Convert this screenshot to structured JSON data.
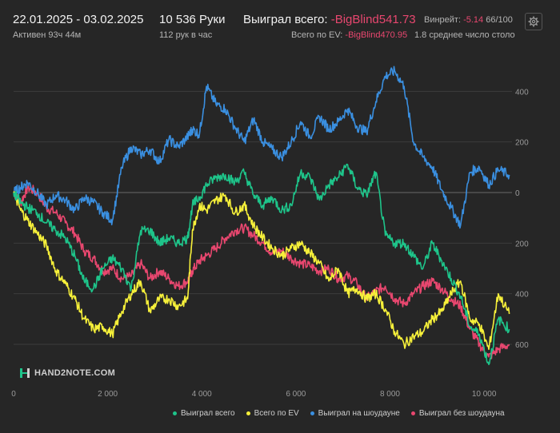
{
  "header": {
    "date_range": "22.01.2025 - 03.02.2025",
    "active": "Активен 93ч 44м",
    "hands": "10 536 Руки",
    "hands_per_hour": "112 рук в час",
    "won_label": "Выиграл всего:",
    "won_value": "-BigBlind541.73",
    "ev_label": "Всего по EV:",
    "ev_value": "-BigBlind470.95",
    "winrate_label": "Винрейт:",
    "winrate_value": "-5.14",
    "winrate_suffix": "66/100",
    "avg_table": "1.8 среднее число столо"
  },
  "logo_text": "HAND2NOTE.COM",
  "colors": {
    "background": "#262626",
    "green": "#1ec48a",
    "yellow": "#f6f03a",
    "blue": "#3a8fe0",
    "pink": "#e8476f",
    "grid": "#3c3c3c",
    "zero": "#6a6a6a"
  },
  "icons": {
    "settings": "gear-icon"
  },
  "chart_data": {
    "type": "line",
    "x_range": [
      0,
      10536
    ],
    "y_range": [
      -700,
      520
    ],
    "x_ticks": [
      0,
      2000,
      4000,
      6000,
      8000,
      10000
    ],
    "x_tick_labels": [
      "0",
      "2 000",
      "4 000",
      "6 000",
      "8 000",
      "10 000"
    ],
    "y_ticks": [
      400,
      200,
      0,
      -200,
      -400,
      -600
    ],
    "y_tick_labels": [
      "400",
      "200",
      "0",
      "200",
      "400",
      "600"
    ],
    "legend": [
      "Выиграл всего",
      "Всего по EV",
      "Выиграл на шоудауне",
      "Выиграл без шоудауна"
    ],
    "series": [
      {
        "name": "Выиграл всего",
        "color_key": "green",
        "x": [
          0,
          150,
          300,
          500,
          700,
          900,
          1100,
          1300,
          1500,
          1700,
          1900,
          2100,
          2300,
          2500,
          2700,
          2900,
          3100,
          3300,
          3500,
          3700,
          3800,
          3950,
          4100,
          4300,
          4500,
          4700,
          4900,
          5100,
          5300,
          5500,
          5700,
          5900,
          6100,
          6300,
          6500,
          6700,
          6900,
          7100,
          7300,
          7500,
          7700,
          7900,
          8100,
          8300,
          8500,
          8700,
          8900,
          9100,
          9300,
          9500,
          9700,
          9900,
          10100,
          10300,
          10536
        ],
        "y": [
          0,
          -40,
          -60,
          -80,
          -120,
          -150,
          -180,
          -250,
          -350,
          -380,
          -300,
          -260,
          -300,
          -380,
          -150,
          -150,
          -200,
          -180,
          -200,
          -180,
          -50,
          -20,
          30,
          60,
          70,
          40,
          80,
          -10,
          -50,
          -20,
          -70,
          -50,
          80,
          60,
          -30,
          30,
          60,
          110,
          20,
          -10,
          80,
          -170,
          -200,
          -200,
          -250,
          -300,
          -200,
          -270,
          -340,
          -410,
          -530,
          -560,
          -680,
          -500,
          -540
        ]
      },
      {
        "name": "Всего по EV",
        "color_key": "yellow",
        "x": [
          0,
          150,
          300,
          500,
          700,
          900,
          1100,
          1300,
          1500,
          1700,
          1900,
          2100,
          2300,
          2500,
          2700,
          2900,
          3100,
          3300,
          3500,
          3700,
          3800,
          3950,
          4100,
          4300,
          4500,
          4700,
          4900,
          5100,
          5300,
          5500,
          5700,
          5900,
          6100,
          6300,
          6500,
          6700,
          6900,
          7100,
          7300,
          7500,
          7700,
          7900,
          8100,
          8300,
          8500,
          8700,
          8900,
          9100,
          9300,
          9500,
          9700,
          9900,
          10100,
          10300,
          10536
        ],
        "y": [
          0,
          -70,
          -110,
          -160,
          -210,
          -310,
          -360,
          -420,
          -500,
          -540,
          -530,
          -560,
          -470,
          -400,
          -350,
          -470,
          -420,
          -420,
          -450,
          -420,
          -150,
          -50,
          -70,
          -30,
          -10,
          -80,
          -50,
          -130,
          -180,
          -220,
          -250,
          -220,
          -200,
          -240,
          -280,
          -350,
          -300,
          -400,
          -380,
          -420,
          -400,
          -460,
          -550,
          -600,
          -570,
          -550,
          -500,
          -470,
          -400,
          -350,
          -500,
          -520,
          -620,
          -400,
          -480
        ]
      },
      {
        "name": "Выиграл на шоудауне",
        "color_key": "blue",
        "x": [
          0,
          150,
          300,
          500,
          700,
          900,
          1100,
          1300,
          1500,
          1700,
          1900,
          2100,
          2300,
          2500,
          2700,
          2900,
          3100,
          3300,
          3500,
          3700,
          3800,
          3950,
          4100,
          4300,
          4500,
          4700,
          4900,
          5100,
          5300,
          5500,
          5700,
          5900,
          6100,
          6300,
          6500,
          6700,
          6900,
          7100,
          7300,
          7500,
          7700,
          7900,
          8100,
          8300,
          8500,
          8700,
          8900,
          9100,
          9300,
          9500,
          9700,
          9900,
          10100,
          10300,
          10536
        ],
        "y": [
          0,
          20,
          40,
          0,
          -50,
          -10,
          -30,
          -70,
          -20,
          -40,
          -80,
          -110,
          100,
          180,
          150,
          170,
          120,
          210,
          180,
          220,
          250,
          230,
          420,
          350,
          330,
          260,
          200,
          290,
          200,
          170,
          140,
          200,
          280,
          220,
          300,
          250,
          280,
          330,
          260,
          240,
          360,
          460,
          480,
          420,
          200,
          140,
          100,
          10,
          -60,
          -130,
          80,
          100,
          30,
          90,
          70
        ]
      },
      {
        "name": "Выиграл без шоудауна",
        "color_key": "pink",
        "x": [
          0,
          150,
          300,
          500,
          700,
          900,
          1100,
          1300,
          1500,
          1700,
          1900,
          2100,
          2300,
          2500,
          2700,
          2900,
          3100,
          3300,
          3500,
          3700,
          3800,
          3950,
          4100,
          4300,
          4500,
          4700,
          4900,
          5100,
          5300,
          5500,
          5700,
          5900,
          6100,
          6300,
          6500,
          6700,
          6900,
          7100,
          7300,
          7500,
          7700,
          7900,
          8100,
          8300,
          8500,
          8700,
          8900,
          9100,
          9300,
          9500,
          9700,
          9900,
          10100,
          10300,
          10536
        ],
        "y": [
          0,
          -40,
          20,
          0,
          -60,
          -80,
          -120,
          -160,
          -230,
          -260,
          -310,
          -300,
          -340,
          -330,
          -280,
          -340,
          -310,
          -340,
          -370,
          -350,
          -310,
          -270,
          -250,
          -220,
          -180,
          -150,
          -140,
          -170,
          -200,
          -240,
          -230,
          -260,
          -280,
          -290,
          -310,
          -300,
          -340,
          -330,
          -360,
          -420,
          -390,
          -370,
          -420,
          -440,
          -400,
          -370,
          -350,
          -380,
          -420,
          -450,
          -540,
          -600,
          -650,
          -620,
          -600
        ]
      }
    ]
  }
}
